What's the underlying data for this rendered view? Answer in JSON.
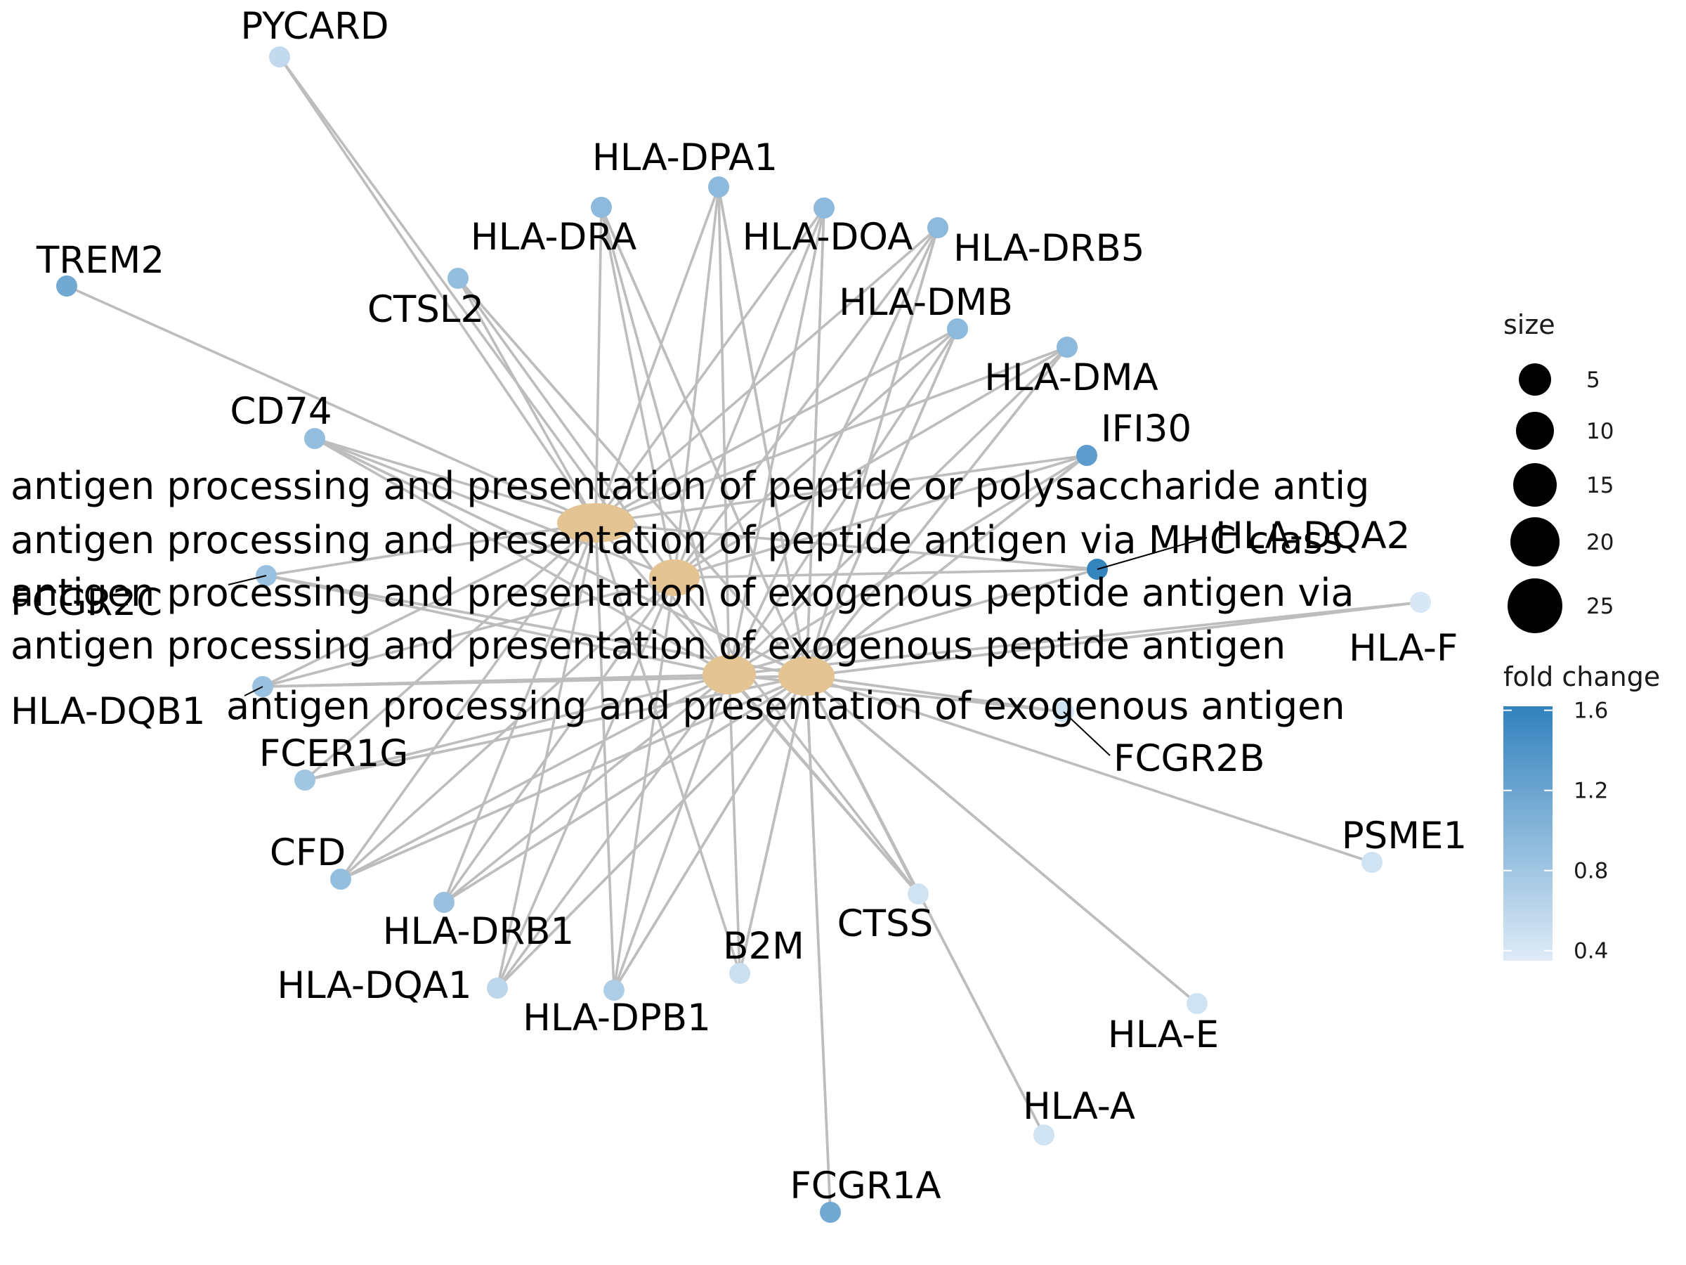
{
  "chart_data": {
    "type": "cnetplot",
    "categories": [
      {
        "id": "c1",
        "label": "antigen processing and presentation of peptide or polysaccharide antig",
        "color": "#E5C494"
      },
      {
        "id": "c2",
        "label": "antigen processing and presentation of peptide antigen via MHC class",
        "color": "#E5C494"
      },
      {
        "id": "c3",
        "label": "antigen processing and presentation of exogenous peptide antigen via",
        "color": "#E5C494"
      },
      {
        "id": "c4",
        "label": "antigen processing and presentation of exogenous peptide antigen",
        "color": "#E5C494"
      },
      {
        "id": "c5",
        "label": "antigen processing and presentation of exogenous antigen",
        "color": "#E5C494"
      }
    ],
    "genes": [
      {
        "id": "PYCARD",
        "label": "PYCARD",
        "fold_change": 0.55
      },
      {
        "id": "HLA-DPA1",
        "label": "HLA-DPA1",
        "fold_change": 0.95
      },
      {
        "id": "HLA-DRA",
        "label": "HLA-DRA",
        "fold_change": 0.95
      },
      {
        "id": "HLA-DOA",
        "label": "HLA-DOA",
        "fold_change": 0.95
      },
      {
        "id": "HLA-DRB5",
        "label": "HLA-DRB5",
        "fold_change": 0.95
      },
      {
        "id": "TREM2",
        "label": "TREM2",
        "fold_change": 1.15
      },
      {
        "id": "CTSL2",
        "label": "CTSL2",
        "fold_change": 0.9
      },
      {
        "id": "HLA-DMB",
        "label": "HLA-DMB",
        "fold_change": 0.95
      },
      {
        "id": "HLA-DMA",
        "label": "HLA-DMA",
        "fold_change": 0.95
      },
      {
        "id": "CD74",
        "label": "CD74",
        "fold_change": 0.9
      },
      {
        "id": "IFI30",
        "label": "IFI30",
        "fold_change": 1.3
      },
      {
        "id": "HLA-DQA2",
        "label": "HLA-DQA2",
        "fold_change": 1.6
      },
      {
        "id": "FCGR2C",
        "label": "FCGR2C",
        "fold_change": 0.85
      },
      {
        "id": "HLA-F",
        "label": "HLA-F",
        "fold_change": 0.4
      },
      {
        "id": "HLA-DQB1",
        "label": "HLA-DQB1",
        "fold_change": 0.85
      },
      {
        "id": "FCGR2B",
        "label": "FCGR2B",
        "fold_change": 0.45
      },
      {
        "id": "FCER1G",
        "label": "FCER1G",
        "fold_change": 0.8
      },
      {
        "id": "PSME1",
        "label": "PSME1",
        "fold_change": 0.45
      },
      {
        "id": "CFD",
        "label": "CFD",
        "fold_change": 0.9
      },
      {
        "id": "HLA-DRB1",
        "label": "HLA-DRB1",
        "fold_change": 0.85
      },
      {
        "id": "CTSS",
        "label": "CTSS",
        "fold_change": 0.45
      },
      {
        "id": "B2M",
        "label": "B2M",
        "fold_change": 0.5
      },
      {
        "id": "HLA-DQA1",
        "label": "HLA-DQA1",
        "fold_change": 0.6
      },
      {
        "id": "HLA-DPB1",
        "label": "HLA-DPB1",
        "fold_change": 0.7
      },
      {
        "id": "HLA-E",
        "label": "HLA-E",
        "fold_change": 0.45
      },
      {
        "id": "HLA-A",
        "label": "HLA-A",
        "fold_change": 0.45
      },
      {
        "id": "FCGR1A",
        "label": "FCGR1A",
        "fold_change": 1.15
      }
    ],
    "edges": [
      [
        "c1",
        "PYCARD"
      ],
      [
        "c1",
        "HLA-DPA1"
      ],
      [
        "c1",
        "HLA-DRA"
      ],
      [
        "c1",
        "HLA-DOA"
      ],
      [
        "c1",
        "HLA-DRB5"
      ],
      [
        "c1",
        "TREM2"
      ],
      [
        "c1",
        "CTSL2"
      ],
      [
        "c1",
        "HLA-DMB"
      ],
      [
        "c1",
        "HLA-DMA"
      ],
      [
        "c1",
        "CD74"
      ],
      [
        "c1",
        "IFI30"
      ],
      [
        "c1",
        "HLA-DQA2"
      ],
      [
        "c1",
        "FCGR2C"
      ],
      [
        "c1",
        "HLA-DQB1"
      ],
      [
        "c1",
        "FCER1G"
      ],
      [
        "c1",
        "CFD"
      ],
      [
        "c1",
        "HLA-DRB1"
      ],
      [
        "c1",
        "CTSS"
      ],
      [
        "c1",
        "B2M"
      ],
      [
        "c1",
        "HLA-DQA1"
      ],
      [
        "c1",
        "HLA-DPB1"
      ],
      [
        "c2",
        "CTSL2"
      ],
      [
        "c2",
        "HLA-DPA1"
      ],
      [
        "c2",
        "HLA-DRA"
      ],
      [
        "c2",
        "HLA-DOA"
      ],
      [
        "c2",
        "HLA-DRB5"
      ],
      [
        "c2",
        "HLA-DMB"
      ],
      [
        "c2",
        "HLA-DMA"
      ],
      [
        "c2",
        "CD74"
      ],
      [
        "c2",
        "IFI30"
      ],
      [
        "c2",
        "HLA-DQA2"
      ],
      [
        "c2",
        "HLA-DQB1"
      ],
      [
        "c2",
        "CFD"
      ],
      [
        "c2",
        "HLA-DRB1"
      ],
      [
        "c2",
        "CTSS"
      ],
      [
        "c2",
        "HLA-DQA1"
      ],
      [
        "c2",
        "HLA-DPB1"
      ],
      [
        "c3",
        "PYCARD"
      ],
      [
        "c3",
        "HLA-DPA1"
      ],
      [
        "c3",
        "HLA-DRA"
      ],
      [
        "c3",
        "HLA-DOA"
      ],
      [
        "c3",
        "HLA-DRB5"
      ],
      [
        "c3",
        "HLA-DMB"
      ],
      [
        "c3",
        "HLA-DMA"
      ],
      [
        "c3",
        "CD74"
      ],
      [
        "c3",
        "IFI30"
      ],
      [
        "c3",
        "HLA-DQA2"
      ],
      [
        "c3",
        "FCGR2C"
      ],
      [
        "c3",
        "HLA-DQB1"
      ],
      [
        "c3",
        "FCER1G"
      ],
      [
        "c3",
        "CFD"
      ],
      [
        "c3",
        "HLA-DRB1"
      ],
      [
        "c3",
        "CTSS"
      ],
      [
        "c3",
        "B2M"
      ],
      [
        "c3",
        "HLA-DQA1"
      ],
      [
        "c3",
        "HLA-DPB1"
      ],
      [
        "c3",
        "HLA-F"
      ],
      [
        "c3",
        "FCGR2B"
      ],
      [
        "c4",
        "CTSL2"
      ],
      [
        "c4",
        "HLA-DPA1"
      ],
      [
        "c4",
        "HLA-DRA"
      ],
      [
        "c4",
        "HLA-DOA"
      ],
      [
        "c4",
        "HLA-DRB5"
      ],
      [
        "c4",
        "HLA-DMB"
      ],
      [
        "c4",
        "HLA-DMA"
      ],
      [
        "c4",
        "CD74"
      ],
      [
        "c4",
        "IFI30"
      ],
      [
        "c4",
        "FCGR2C"
      ],
      [
        "c4",
        "HLA-DQB1"
      ],
      [
        "c4",
        "FCER1G"
      ],
      [
        "c4",
        "CFD"
      ],
      [
        "c4",
        "HLA-DRB1"
      ],
      [
        "c4",
        "CTSS"
      ],
      [
        "c4",
        "B2M"
      ],
      [
        "c4",
        "HLA-DQA1"
      ],
      [
        "c4",
        "HLA-DPB1"
      ],
      [
        "c4",
        "HLA-F"
      ],
      [
        "c4",
        "PSME1"
      ],
      [
        "c4",
        "HLA-E"
      ],
      [
        "c4",
        "HLA-A"
      ],
      [
        "c4",
        "FCGR2B"
      ],
      [
        "c4",
        "FCGR1A"
      ],
      [
        "c5",
        "CTSL2"
      ],
      [
        "c5",
        "HLA-DPA1"
      ],
      [
        "c5",
        "HLA-DRA"
      ],
      [
        "c5",
        "HLA-DOA"
      ],
      [
        "c5",
        "HLA-DRB5"
      ],
      [
        "c5",
        "HLA-DMB"
      ],
      [
        "c5",
        "HLA-DMA"
      ],
      [
        "c5",
        "CD74"
      ],
      [
        "c5",
        "IFI30"
      ],
      [
        "c5",
        "FCGR2C"
      ],
      [
        "c5",
        "HLA-DQB1"
      ],
      [
        "c5",
        "FCER1G"
      ],
      [
        "c5",
        "CFD"
      ],
      [
        "c5",
        "HLA-DRB1"
      ],
      [
        "c5",
        "CTSS"
      ],
      [
        "c5",
        "B2M"
      ],
      [
        "c5",
        "HLA-DQA1"
      ],
      [
        "c5",
        "HLA-DPB1"
      ],
      [
        "c5",
        "HLA-F"
      ],
      [
        "c5",
        "FCGR2B"
      ],
      [
        "c5",
        "FCGR1A"
      ],
      [
        "c5",
        "HLA-E"
      ],
      [
        "c5",
        "HLA-A"
      ]
    ],
    "legend": {
      "size_title": "size",
      "size_values": [
        "5",
        "10",
        "15",
        "20",
        "25"
      ],
      "color_title": "fold change",
      "color_ticks": [
        "1.6",
        "1.2",
        "0.8",
        "0.4"
      ],
      "color_scale": {
        "low": "#DEEBF7",
        "high": "#3182BD",
        "min": 0.35,
        "max": 1.62
      },
      "placement": "right"
    }
  }
}
